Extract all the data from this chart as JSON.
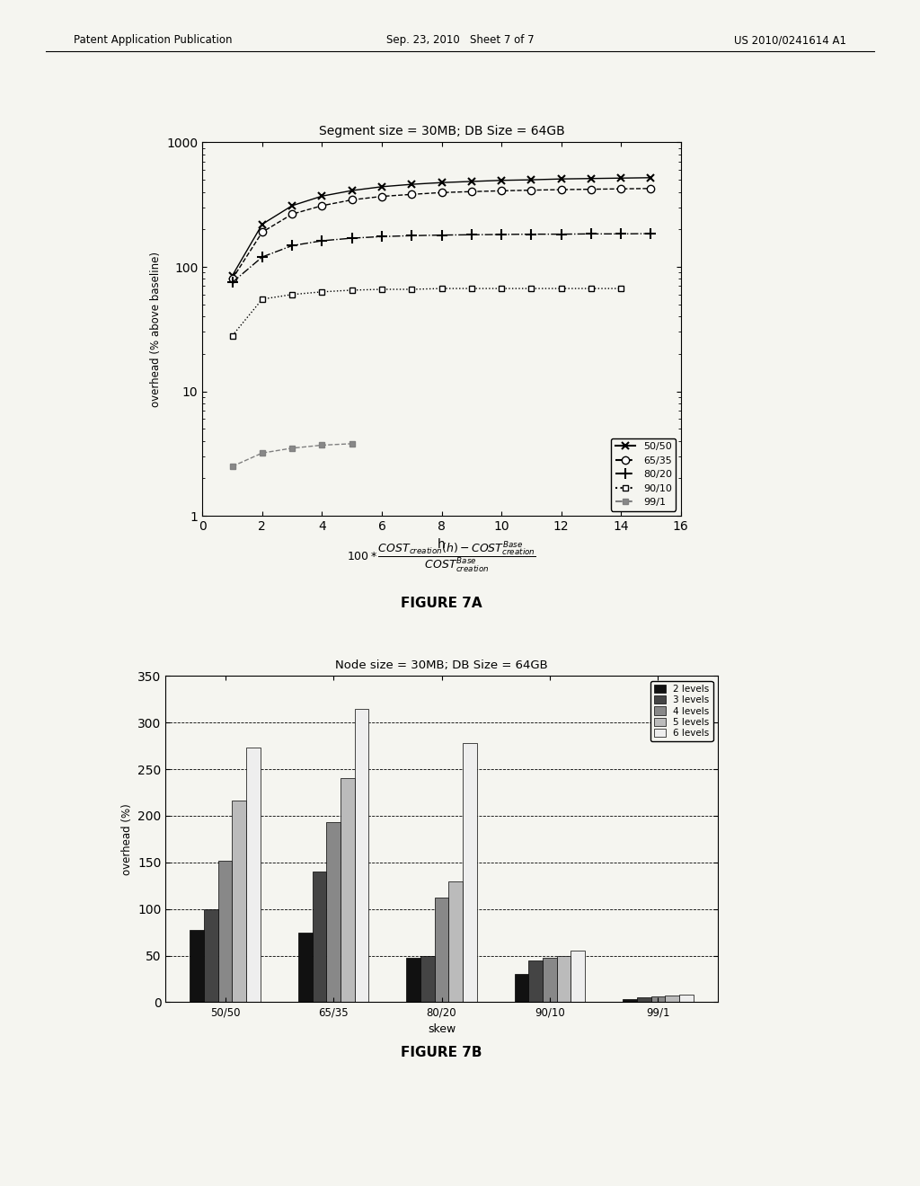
{
  "fig7a": {
    "title": "Segment size = 30MB; DB Size = 64GB",
    "xlabel": "h",
    "ylabel": "overhead (% above baseline)",
    "xlim": [
      0,
      16
    ],
    "ylim_log": [
      1,
      1000
    ],
    "xticks": [
      0,
      2,
      4,
      6,
      8,
      10,
      12,
      14,
      16
    ],
    "series": {
      "50/50": {
        "x": [
          1,
          2,
          3,
          4,
          5,
          6,
          7,
          8,
          9,
          10,
          11,
          12,
          13,
          14,
          15
        ],
        "y": [
          85,
          220,
          310,
          370,
          410,
          440,
          460,
          475,
          485,
          495,
          500,
          508,
          512,
          516,
          520
        ]
      },
      "65/35": {
        "x": [
          1,
          2,
          3,
          4,
          5,
          6,
          7,
          8,
          9,
          10,
          11,
          12,
          13,
          14,
          15
        ],
        "y": [
          80,
          190,
          265,
          310,
          345,
          368,
          382,
          395,
          402,
          408,
          413,
          417,
          420,
          423,
          426
        ]
      },
      "80/20": {
        "x": [
          1,
          2,
          3,
          4,
          5,
          6,
          7,
          8,
          9,
          10,
          11,
          12,
          13,
          14,
          15
        ],
        "y": [
          75,
          120,
          148,
          162,
          170,
          175,
          178,
          180,
          181,
          182,
          183,
          183,
          184,
          184,
          185
        ]
      },
      "90/10": {
        "x": [
          1,
          2,
          3,
          4,
          5,
          6,
          7,
          8,
          9,
          10,
          11,
          12,
          13,
          14
        ],
        "y": [
          28,
          55,
          60,
          63,
          65,
          66,
          66,
          67,
          67,
          67,
          67,
          67,
          67,
          67
        ]
      },
      "99/1": {
        "x": [
          1,
          2,
          3,
          4,
          5
        ],
        "y": [
          2.5,
          3.2,
          3.5,
          3.7,
          3.8
        ]
      }
    },
    "figure_label": "FIGURE 7A"
  },
  "fig7b": {
    "title": "Node size = 30MB; DB Size = 64GB",
    "xlabel": "skew",
    "ylabel": "overhead (%)",
    "ylim": [
      0,
      350
    ],
    "yticks": [
      0,
      50,
      100,
      150,
      200,
      250,
      300,
      350
    ],
    "categories": [
      "50/50",
      "65/35",
      "80/20",
      "90/10",
      "99/1"
    ],
    "series": {
      "2 levels": {
        "values": [
          78,
          75,
          48,
          30,
          3
        ],
        "color": "#111111"
      },
      "3 levels": {
        "values": [
          100,
          140,
          50,
          45,
          5
        ],
        "color": "#444444"
      },
      "4 levels": {
        "values": [
          152,
          193,
          112,
          48,
          6
        ],
        "color": "#888888"
      },
      "5 levels": {
        "values": [
          216,
          240,
          130,
          50,
          7
        ],
        "color": "#bbbbbb"
      },
      "6 levels": {
        "values": [
          273,
          315,
          278,
          55,
          8
        ],
        "color": "#eeeeee"
      }
    },
    "figure_label": "FIGURE 7B"
  },
  "header": {
    "left": "Patent Application Publication",
    "center": "Sep. 23, 2010   Sheet 7 of 7",
    "right": "US 2010/0241614 A1"
  },
  "bg_color": "#f5f5f0"
}
